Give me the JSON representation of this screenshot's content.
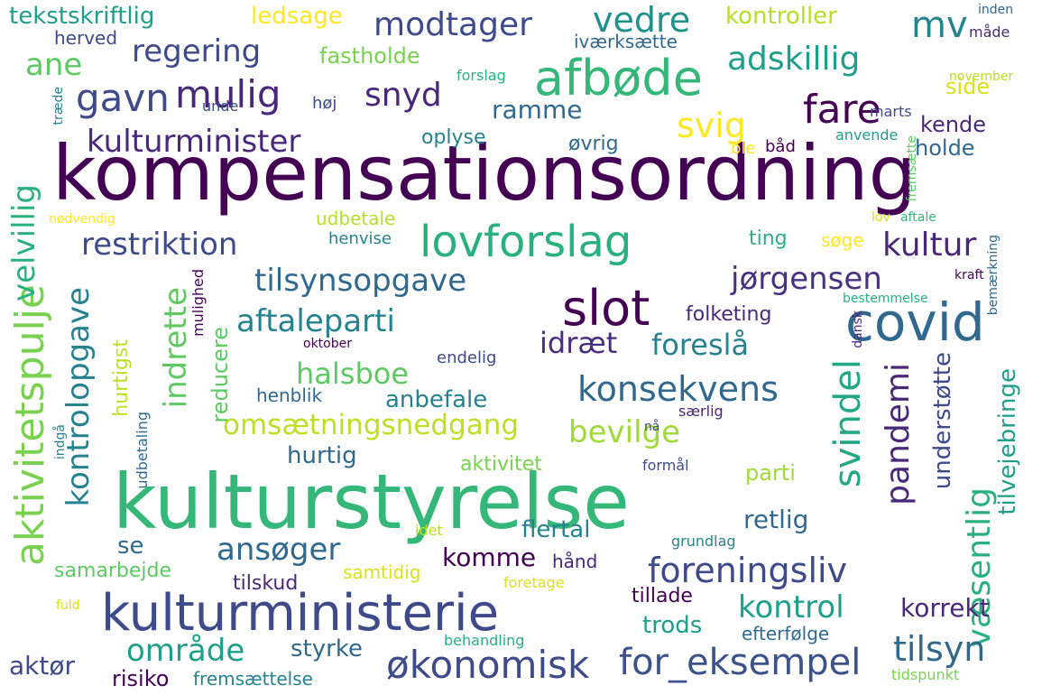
{
  "cloud": {
    "words": [
      {
        "text": "kompensationsordning",
        "color": "#440154"
      },
      {
        "text": "kulturstyrelse",
        "color": "#35b779"
      },
      {
        "text": "kulturministerie",
        "color": "#3e4a89"
      },
      {
        "text": "lovforslag",
        "color": "#2ab07f"
      },
      {
        "text": "covid",
        "color": "#31688e"
      },
      {
        "text": "slot",
        "color": "#440154"
      },
      {
        "text": "afbøde",
        "color": "#35b779"
      },
      {
        "text": "økonomisk",
        "color": "#3e4a89"
      },
      {
        "text": "for_eksempel",
        "color": "#3b528b"
      },
      {
        "text": "omsætningsnedgang",
        "color": "#bddf26"
      },
      {
        "text": "foreningsliv",
        "color": "#3e4a89"
      },
      {
        "text": "konsekvens",
        "color": "#31688e"
      },
      {
        "text": "aktivitetspulje",
        "color": "#7ad151"
      },
      {
        "text": "kontrolopgave",
        "color": "#26828e"
      },
      {
        "text": "aftaleparti",
        "color": "#26828e"
      },
      {
        "text": "tilsynsopgave",
        "color": "#31688e"
      },
      {
        "text": "restriktion",
        "color": "#3e4a89"
      },
      {
        "text": "kulturminister",
        "color": "#482878"
      },
      {
        "text": "modtager",
        "color": "#3e4a89"
      },
      {
        "text": "regering",
        "color": "#3e4a89"
      },
      {
        "text": "adskillig",
        "color": "#1f9e89"
      },
      {
        "text": "gavn",
        "color": "#3e4a89"
      },
      {
        "text": "mulig",
        "color": "#482878"
      },
      {
        "text": "snyd",
        "color": "#482878"
      },
      {
        "text": "vedre",
        "color": "#21918c"
      },
      {
        "text": "fare",
        "color": "#440154"
      },
      {
        "text": "svig",
        "color": "#fde725"
      },
      {
        "text": "mv",
        "color": "#26828e"
      },
      {
        "text": "kultur",
        "color": "#482878"
      },
      {
        "text": "jørgensen",
        "color": "#46327e"
      },
      {
        "text": "idræt",
        "color": "#472d7b"
      },
      {
        "text": "foreslå",
        "color": "#26828e"
      },
      {
        "text": "halsboe",
        "color": "#5ec962"
      },
      {
        "text": "indrette",
        "color": "#5ec962"
      },
      {
        "text": "bevilge",
        "color": "#a0da39"
      },
      {
        "text": "svindel",
        "color": "#22a884"
      },
      {
        "text": "pandemi",
        "color": "#482878"
      },
      {
        "text": "væsentlig",
        "color": "#2ab07f"
      },
      {
        "text": "tilsyn",
        "color": "#31688e"
      },
      {
        "text": "område",
        "color": "#1f9e89"
      },
      {
        "text": "ansøger",
        "color": "#31688e"
      },
      {
        "text": "kontrol",
        "color": "#1f9e89"
      },
      {
        "text": "velvillig",
        "color": "#2ab07f"
      },
      {
        "text": "komme",
        "color": "#440154"
      },
      {
        "text": "flertal",
        "color": "#26828e"
      },
      {
        "text": "hurtigst",
        "color": "#bddf26"
      },
      {
        "text": "ramme",
        "color": "#31688e"
      },
      {
        "text": "ane",
        "color": "#5ec962"
      },
      {
        "text": "tekstskriftlig",
        "color": "#1f9e89"
      },
      {
        "text": "ledsage",
        "color": "#fde725"
      },
      {
        "text": "fastholde",
        "color": "#7ad151"
      },
      {
        "text": "kontroller",
        "color": "#b8de29"
      },
      {
        "text": "side",
        "color": "#d8e219"
      },
      {
        "text": "kende",
        "color": "#482878"
      },
      {
        "text": "holde",
        "color": "#31688e"
      },
      {
        "text": "øvrig",
        "color": "#31688e"
      },
      {
        "text": "oplyse",
        "color": "#26828e"
      },
      {
        "text": "ting",
        "color": "#2ab07f"
      },
      {
        "text": "søge",
        "color": "#fde725"
      },
      {
        "text": "folketing",
        "color": "#482878"
      },
      {
        "text": "anbefale",
        "color": "#26828e"
      },
      {
        "text": "reducere",
        "color": "#5ec962"
      },
      {
        "text": "hurtig",
        "color": "#31688e"
      },
      {
        "text": "aktivitet",
        "color": "#7ad151"
      },
      {
        "text": "parti",
        "color": "#a0da39"
      },
      {
        "text": "retlig",
        "color": "#31688e"
      },
      {
        "text": "understøtte",
        "color": "#3e4a89"
      },
      {
        "text": "tilvejebringe",
        "color": "#1f9e89"
      },
      {
        "text": "korrekt",
        "color": "#482878"
      },
      {
        "text": "trods",
        "color": "#1f9e89"
      },
      {
        "text": "styrke",
        "color": "#31688e"
      },
      {
        "text": "aktør",
        "color": "#3e4a89"
      },
      {
        "text": "risiko",
        "color": "#440154"
      },
      {
        "text": "tilskud",
        "color": "#482878"
      },
      {
        "text": "tillade",
        "color": "#440154"
      },
      {
        "text": "se",
        "color": "#31688e"
      },
      {
        "text": "samarbejde",
        "color": "#5ec962"
      },
      {
        "text": "samtidig",
        "color": "#d8e219"
      },
      {
        "text": "hånd",
        "color": "#482878"
      },
      {
        "text": "efterfølge",
        "color": "#31688e"
      },
      {
        "text": "behandling",
        "color": "#2ab07f"
      },
      {
        "text": "fremsættelse",
        "color": "#26828e"
      },
      {
        "text": "udbetale",
        "color": "#b8de29"
      },
      {
        "text": "henvise",
        "color": "#26828e"
      },
      {
        "text": "endelig",
        "color": "#3e4a89"
      },
      {
        "text": "henblik",
        "color": "#31688e"
      },
      {
        "text": "iværksætte",
        "color": "#31688e"
      },
      {
        "text": "herved",
        "color": "#3e4a89"
      },
      {
        "text": "forslag",
        "color": "#2ab07f"
      },
      {
        "text": "høj",
        "color": "#3e4a89"
      },
      {
        "text": "unde",
        "color": "#3e4a89"
      },
      {
        "text": "ble",
        "color": "#fde725"
      },
      {
        "text": "båd",
        "color": "#440154"
      },
      {
        "text": "anvende",
        "color": "#1f9e89"
      },
      {
        "text": "marts",
        "color": "#3e4a89"
      },
      {
        "text": "november",
        "color": "#b8de29"
      },
      {
        "text": "måde",
        "color": "#482878"
      },
      {
        "text": "inden",
        "color": "#31688e"
      },
      {
        "text": "fremsætte",
        "color": "#5ec962"
      },
      {
        "text": "træde",
        "color": "#26828e"
      },
      {
        "text": "nødvendig",
        "color": "#fde725"
      },
      {
        "text": "lov",
        "color": "#d8e219"
      },
      {
        "text": "aftale",
        "color": "#35b779"
      },
      {
        "text": "kraft",
        "color": "#440154"
      },
      {
        "text": "bestemmelse",
        "color": "#2ab07f"
      },
      {
        "text": "bemærkning",
        "color": "#31688e"
      },
      {
        "text": "dansk",
        "color": "#482878"
      },
      {
        "text": "oktober",
        "color": "#440154"
      },
      {
        "text": "mulighed",
        "color": "#440154"
      },
      {
        "text": "nå",
        "color": "#3e4a89"
      },
      {
        "text": "særlig",
        "color": "#482878"
      },
      {
        "text": "indgå",
        "color": "#26828e"
      },
      {
        "text": "udbetaling",
        "color": "#31688e"
      },
      {
        "text": "formål",
        "color": "#3e4a89"
      },
      {
        "text": "idet",
        "color": "#b8de29"
      },
      {
        "text": "grundlag",
        "color": "#26828e"
      },
      {
        "text": "foretage",
        "color": "#d8e219"
      },
      {
        "text": "fuld",
        "color": "#d8e219"
      },
      {
        "text": "tidspunkt",
        "color": "#7ad151"
      }
    ]
  }
}
